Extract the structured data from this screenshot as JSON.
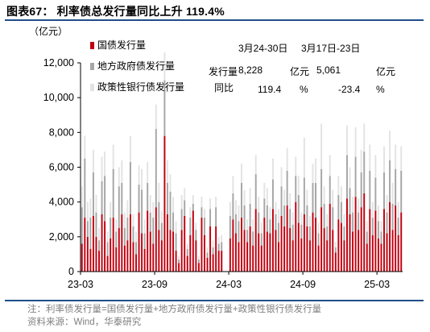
{
  "header": {
    "title": "图表67：  利率债总发行量同比上升 119.4%",
    "unit": "（亿元）"
  },
  "colors": {
    "gov": "#c0000f",
    "local": "#a6a6a6",
    "policy": "#e3e3e3",
    "rule": "#1f4e8c"
  },
  "chart_data": {
    "type": "bar",
    "stacked": true,
    "ylim": [
      0,
      12000
    ],
    "y_ticks": [
      "0",
      "2,000",
      "4,000",
      "6,000",
      "8,000",
      "10,000",
      "12,000"
    ],
    "y_tick_values": [
      0,
      2000,
      4000,
      6000,
      8000,
      10000,
      12000
    ],
    "x_tick_labels": [
      "23-03",
      "23-09",
      "24-03",
      "24-09",
      "25-03"
    ],
    "x_tick_index": [
      0,
      26,
      52,
      78,
      104
    ],
    "legend_position": "top-left",
    "series": [
      {
        "name": "国债发行量",
        "values": [
          1600,
          3100,
          2000,
          1300,
          3200,
          2000,
          1200,
          3300,
          2900,
          900,
          1900,
          3100,
          1400,
          2500,
          3300,
          1500,
          1800,
          3300,
          1700,
          1000,
          3400,
          2200,
          1300,
          3500,
          2300,
          1600,
          3700,
          2400,
          1800,
          7800,
          3300,
          2400,
          2300,
          1200,
          500,
          2400,
          3200,
          900,
          2100,
          3500,
          1800,
          500,
          3100,
          2100,
          800,
          2600,
          1000,
          2600,
          1200,
          1200,
          0,
          0,
          1900,
          3000,
          2200,
          1700,
          3100,
          2400,
          1700,
          2600,
          1500,
          3600,
          2200,
          1500,
          3100,
          2300,
          2200,
          3600,
          2400,
          1700,
          3200,
          2600,
          3800,
          2500,
          1800,
          4000,
          2800,
          1900,
          3300,
          2600,
          1800,
          3400,
          3100,
          1500,
          3700,
          2500,
          1800,
          3900,
          2400,
          1100,
          3000,
          2800,
          1800,
          4200,
          3300,
          2300,
          4300,
          2400,
          3700,
          4500,
          1600,
          3600,
          2100,
          3500,
          1900,
          1600,
          3600,
          2200,
          4000,
          2400,
          3800,
          2100,
          3400
        ]
      },
      {
        "name": "地方政府债发行量",
        "values": [
          2100,
          3400,
          900,
          1800,
          2500,
          1400,
          600,
          1900,
          2600,
          800,
          1200,
          2800,
          900,
          2400,
          1800,
          1000,
          1300,
          3000,
          900,
          700,
          1600,
          2500,
          900,
          1600,
          1100,
          1500,
          4500,
          1600,
          1000,
          3200,
          1800,
          2200,
          1100,
          1000,
          200,
          1200,
          900,
          400,
          1000,
          400,
          600,
          200,
          600,
          1000,
          300,
          1000,
          400,
          1100,
          400,
          500,
          0,
          0,
          1300,
          1500,
          1100,
          1200,
          2000,
          1400,
          700,
          1300,
          800,
          2000,
          1200,
          700,
          1100,
          1500,
          800,
          1700,
          900,
          1100,
          1700,
          1200,
          2000,
          1100,
          900,
          1500,
          1600,
          800,
          2100,
          1200,
          800,
          1700,
          2000,
          700,
          2200,
          1400,
          800,
          1600,
          1300,
          300,
          1400,
          1200,
          800,
          2500,
          1500,
          1100,
          2300,
          1000,
          2000,
          2400,
          700,
          2200,
          1000,
          1900,
          1000,
          700,
          2100,
          1200,
          2400,
          1500,
          2100,
          1000,
          2400
        ]
      },
      {
        "name": "政策性银行债发行量",
        "values": [
          1200,
          1300,
          1100,
          1100,
          1300,
          1000,
          700,
          1400,
          1400,
          600,
          900,
          1400,
          700,
          1100,
          1300,
          900,
          1000,
          1500,
          700,
          600,
          1100,
          1200,
          800,
          1200,
          1000,
          900,
          1400,
          1100,
          700,
          1600,
          1300,
          1000,
          900,
          700,
          200,
          800,
          700,
          300,
          600,
          500,
          400,
          200,
          600,
          500,
          300,
          600,
          400,
          600,
          400,
          400,
          0,
          0,
          800,
          1000,
          800,
          900,
          1100,
          900,
          600,
          900,
          700,
          1100,
          900,
          600,
          900,
          1000,
          700,
          1200,
          700,
          800,
          1100,
          900,
          1300,
          900,
          700,
          1100,
          1100,
          700,
          2300,
          900,
          600,
          1100,
          1400,
          600,
          2600,
          1000,
          700,
          1200,
          1000,
          300,
          1100,
          900,
          700,
          1700,
          1200,
          900,
          1700,
          800,
          1300,
          1600,
          600,
          1500,
          900,
          1300,
          900,
          600,
          1500,
          1000,
          1700,
          1200,
          1400,
          900,
          1400
        ]
      }
    ]
  },
  "table": {
    "col1_header": "3月24-30日",
    "col2_header": "3月17日-23日",
    "row1": {
      "label": "发行量",
      "v1": "8,228",
      "unit1": "亿元",
      "v2": "5,061",
      "unit2": "亿元"
    },
    "row2": {
      "label": "同比",
      "v1": "119.4",
      "unit1": "%",
      "v2": "-23.4",
      "unit2": "%"
    }
  },
  "notes": {
    "line1": "注：利率债发行量=国债发行量+地方政府债发行量+政策性银行债发行量",
    "line2": "资料来源：Wind，华泰研究"
  }
}
